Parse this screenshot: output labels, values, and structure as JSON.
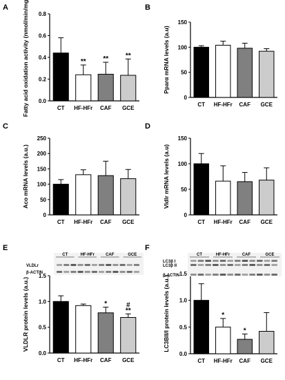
{
  "colors": {
    "CT": "#000000",
    "HF-HFr": "#ffffff",
    "CAF": "#808080",
    "GCE": "#cccccc"
  },
  "chart_data": [
    {
      "panel": "A",
      "type": "bar",
      "ylabel": "Fatty acid oxidation activity (nmol/min/mg)",
      "categories": [
        "CT",
        "HF-HFr",
        "CAF",
        "GCE"
      ],
      "values": [
        0.44,
        0.24,
        0.245,
        0.235
      ],
      "errors": [
        0.14,
        0.09,
        0.11,
        0.15
      ],
      "annotations": [
        "",
        "**",
        "**",
        "**"
      ],
      "ylim": [
        0,
        0.8
      ],
      "yticks": [
        "0.0",
        "0.2",
        "0.4",
        "0.6",
        "0.8"
      ]
    },
    {
      "panel": "B",
      "type": "bar",
      "ylabel": "Pparα mRNA levels (a.u)",
      "categories": [
        "CT",
        "HF-HFr",
        "CAF",
        "GCE"
      ],
      "values": [
        100,
        104,
        98,
        92
      ],
      "errors": [
        3,
        8,
        10,
        5
      ],
      "annotations": [
        "",
        "",
        "",
        ""
      ],
      "ylim": [
        0,
        150
      ],
      "yticks": [
        "0",
        "50",
        "100",
        "150"
      ]
    },
    {
      "panel": "C",
      "type": "bar",
      "ylabel": "Aco mRNA levels (a.u.)",
      "categories": [
        "CT",
        "HF-HFr",
        "CAF",
        "GCE"
      ],
      "values": [
        100,
        131,
        128,
        118
      ],
      "errors": [
        15,
        16,
        47,
        30
      ],
      "annotations": [
        "",
        "",
        "",
        ""
      ],
      "ylim": [
        0,
        250
      ],
      "yticks": [
        "0",
        "50",
        "100",
        "150",
        "200",
        "250"
      ]
    },
    {
      "panel": "D",
      "type": "bar",
      "ylabel": "Vldlr mRNA levels (a.u)",
      "categories": [
        "CT",
        "HF-HFr",
        "CAF",
        "GCE"
      ],
      "values": [
        100,
        66,
        65,
        68
      ],
      "errors": [
        20,
        30,
        18,
        24
      ],
      "annotations": [
        "",
        "",
        "",
        ""
      ],
      "ylim": [
        0,
        150
      ],
      "yticks": [
        "0",
        "50",
        "100",
        "150"
      ]
    },
    {
      "panel": "E",
      "type": "bar",
      "ylabel": "VLDLR protein levels (a.u.)",
      "categories": [
        "CT",
        "HF-HFr",
        "CAF",
        "GCE"
      ],
      "values": [
        1.0,
        0.92,
        0.78,
        0.69
      ],
      "errors": [
        0.11,
        0.03,
        0.11,
        0.07
      ],
      "annotations": [
        "",
        "",
        "*",
        "**"
      ],
      "annotations_top": [
        "",
        "",
        "",
        "#"
      ],
      "ylim": [
        0,
        1.5
      ],
      "yticks": [
        "0.0",
        "0.5",
        "1.0",
        "1.5"
      ],
      "blot_labels": [
        "VLDLr",
        "β-ACTIN"
      ]
    },
    {
      "panel": "F",
      "type": "bar",
      "ylabel": "LC3BII/I protein levels (a.u.)",
      "categories": [
        "CT",
        "HF-HFr",
        "CAF",
        "GCE"
      ],
      "values": [
        1.0,
        0.5,
        0.27,
        0.42
      ],
      "errors": [
        0.31,
        0.16,
        0.1,
        0.35
      ],
      "annotations": [
        "",
        "*",
        "*",
        ""
      ],
      "ylim": [
        0,
        1.5
      ],
      "yticks": [
        "0.0",
        "0.5",
        "1.0",
        "1.5"
      ],
      "blot_labels": [
        "LC3β I",
        "LC3β II",
        "β-ACTIN"
      ]
    }
  ]
}
